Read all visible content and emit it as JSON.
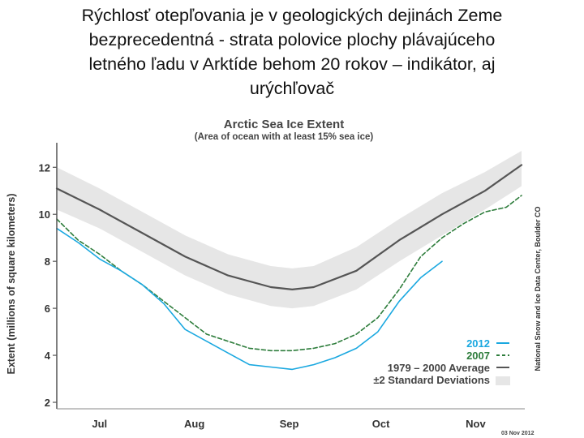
{
  "slide": {
    "title_lines": [
      "Rýchlosť otepľovania je v geologických dejinách Zeme",
      "bezprecedentná - strata polovice plochy  plávajúceho",
      "letného ľadu v Arktíde behom 20 rokov – indikátor, aj",
      "urýchľovač"
    ]
  },
  "chart_data": {
    "type": "line",
    "title": "Arctic Sea Ice Extent",
    "subtitle": "(Area of ocean with at least 15% sea ice)",
    "xlabel": "",
    "ylabel": "Extent (millions of square kilometers)",
    "x_tick_labels": [
      "Jul",
      "Aug",
      "Sep",
      "Oct",
      "Nov"
    ],
    "x_tick_dates": [
      "07-15",
      "08-15",
      "09-15",
      "10-15",
      "11-15"
    ],
    "xlim": [
      "07-01",
      "11-30"
    ],
    "y_ticks": [
      2,
      4,
      6,
      8,
      10,
      12
    ],
    "ylim": [
      2,
      12.7
    ],
    "legend_position": "bottom-right",
    "series": [
      {
        "name": "2012",
        "color": "#1aa8e0",
        "style": "solid",
        "x": [
          "07-01",
          "07-08",
          "07-15",
          "07-22",
          "07-29",
          "08-05",
          "08-12",
          "08-19",
          "08-26",
          "09-02",
          "09-09",
          "09-16",
          "09-23",
          "09-30",
          "10-07",
          "10-14",
          "10-21",
          "10-28",
          "11-04"
        ],
        "y": [
          9.4,
          8.8,
          8.1,
          7.6,
          7.0,
          6.2,
          5.1,
          4.6,
          4.1,
          3.6,
          3.5,
          3.4,
          3.6,
          3.9,
          4.3,
          5.0,
          6.3,
          7.3,
          8.0
        ]
      },
      {
        "name": "2007",
        "color": "#2e7d3c",
        "style": "dashed",
        "x": [
          "07-01",
          "07-08",
          "07-15",
          "07-22",
          "07-29",
          "08-05",
          "08-12",
          "08-19",
          "08-26",
          "09-02",
          "09-09",
          "09-16",
          "09-23",
          "09-30",
          "10-07",
          "10-14",
          "10-21",
          "10-28",
          "11-04",
          "11-11",
          "11-18",
          "11-25",
          "11-30"
        ],
        "y": [
          9.8,
          8.9,
          8.3,
          7.6,
          7.0,
          6.3,
          5.6,
          4.9,
          4.6,
          4.3,
          4.2,
          4.2,
          4.3,
          4.5,
          4.9,
          5.6,
          6.8,
          8.2,
          9.0,
          9.6,
          10.1,
          10.3,
          10.8
        ]
      },
      {
        "name": "1979 – 2000 Average",
        "color": "#555555",
        "style": "solid",
        "x": [
          "07-01",
          "07-15",
          "07-29",
          "08-12",
          "08-26",
          "09-09",
          "09-16",
          "09-23",
          "10-07",
          "10-21",
          "11-04",
          "11-18",
          "11-30"
        ],
        "y": [
          11.1,
          10.2,
          9.2,
          8.2,
          7.4,
          6.9,
          6.8,
          6.9,
          7.6,
          8.9,
          10.0,
          11.0,
          12.1
        ]
      }
    ],
    "band": {
      "name": "±2 Standard Deviations",
      "color": "#e6e6e6",
      "x": [
        "07-01",
        "07-15",
        "07-29",
        "08-12",
        "08-26",
        "09-09",
        "09-16",
        "09-23",
        "10-07",
        "10-21",
        "11-04",
        "11-18",
        "11-30"
      ],
      "upper": [
        12.0,
        11.1,
        10.1,
        9.1,
        8.3,
        7.8,
        7.7,
        7.8,
        8.6,
        9.8,
        10.9,
        11.8,
        12.7
      ],
      "lower": [
        10.2,
        9.4,
        8.4,
        7.4,
        6.6,
        6.1,
        6.0,
        6.1,
        6.8,
        8.0,
        9.1,
        10.2,
        11.2
      ]
    },
    "credit": "National Snow and Ice Data Center, Boulder CO",
    "date_stamp": "03 Nov 2012"
  }
}
